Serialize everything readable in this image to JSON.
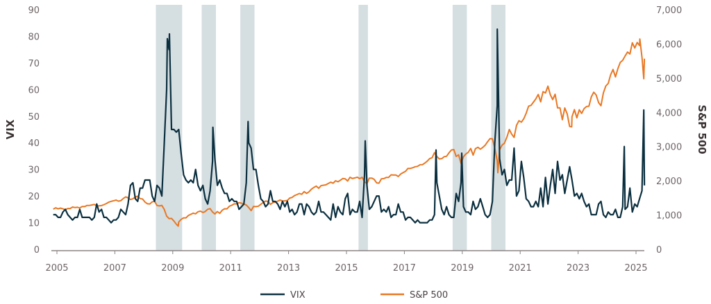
{
  "chart_data": {
    "type": "line",
    "title": "",
    "xlabel": "",
    "ylabel_left": "VIX",
    "ylabel_right": "S&P 500",
    "ylim_left": [
      0,
      90
    ],
    "ylim_right": [
      0,
      7000
    ],
    "yticks_left": [
      "0",
      "10",
      "20",
      "30",
      "40",
      "50",
      "60",
      "70",
      "80",
      "90"
    ],
    "yticks_right": [
      "0",
      "1,000",
      "2,000",
      "3,000",
      "4,000",
      "5,000",
      "6,000",
      "7,000"
    ],
    "xticks": [
      "2005",
      "2007",
      "2009",
      "2011",
      "2013",
      "2015",
      "2017",
      "2019",
      "2021",
      "2023",
      "2025"
    ],
    "grid": false,
    "legend_placement": "bottom",
    "colors": {
      "vix": "#0b2f3f",
      "sp500": "#e87722",
      "shading": "#d5dee1"
    },
    "shaded_periods": [
      [
        "2008-06",
        "2009-04"
      ],
      [
        "2010-01",
        "2010-06"
      ],
      [
        "2011-05",
        "2011-10"
      ],
      [
        "2015-06",
        "2015-09"
      ],
      [
        "2018-09",
        "2019-02"
      ],
      [
        "2020-01",
        "2020-06"
      ]
    ],
    "series": [
      {
        "name": "VIX",
        "axis": "left",
        "start": "2004-11",
        "monthly": [
          13,
          13,
          12,
          12,
          14,
          15,
          13,
          12,
          11,
          12,
          12,
          15,
          12,
          12,
          12,
          12,
          11,
          12,
          17,
          14,
          15,
          12,
          12,
          11,
          10,
          11,
          11,
          12,
          15,
          14,
          13,
          17,
          24,
          25,
          19,
          18,
          23,
          23,
          26,
          26,
          26,
          20,
          18,
          24,
          23,
          20,
          40,
          60,
          75,
          45,
          45,
          44,
          45,
          36,
          28,
          26,
          25,
          26,
          25,
          30,
          24,
          22,
          24,
          19,
          17,
          22,
          33,
          34,
          24,
          26,
          23,
          21,
          21,
          18,
          19,
          18,
          18,
          15,
          16,
          17,
          25,
          40,
          38,
          30,
          30,
          24,
          19,
          18,
          16,
          17,
          22,
          18,
          18,
          17,
          15,
          18,
          16,
          18,
          14,
          15,
          13,
          14,
          17,
          17,
          13,
          17,
          16,
          14,
          13,
          14,
          18,
          14,
          14,
          13,
          12,
          11,
          17,
          12,
          16,
          14,
          13,
          19,
          21,
          13,
          15,
          14,
          14,
          18,
          12,
          28,
          24,
          15,
          16,
          18,
          20,
          20,
          14,
          15,
          14,
          16,
          12,
          13,
          13,
          17,
          14,
          14,
          11,
          12,
          12,
          11,
          10,
          11,
          10,
          10,
          10,
          10,
          11,
          11,
          13,
          25,
          20,
          15,
          13,
          16,
          13,
          12,
          12,
          21,
          18,
          25,
          16,
          14,
          14,
          13,
          18,
          15,
          16,
          19,
          16,
          13,
          12,
          13,
          18,
          40,
          54,
          34,
          28,
          30,
          24,
          26,
          26,
          38,
          20,
          22,
          33,
          27,
          19,
          18,
          16,
          16,
          18,
          16,
          23,
          16,
          27,
          17,
          24,
          30,
          21,
          33,
          26,
          28,
          21,
          26,
          31,
          26,
          20,
          21,
          19,
          21,
          18,
          16,
          17,
          13,
          13,
          13,
          17,
          18,
          13,
          12,
          14,
          13,
          13,
          15,
          12,
          12,
          16,
          15,
          16,
          23,
          14,
          17,
          16,
          19,
          22,
          24
        ],
        "peaks": [
          [
            "2008-10-24",
            79.1
          ],
          [
            "2008-11-20",
            80.9
          ],
          [
            "2010-05-20",
            45.8
          ],
          [
            "2011-08-08",
            48.0
          ],
          [
            "2015-08-24",
            40.7
          ],
          [
            "2018-02-05",
            37.3
          ],
          [
            "2018-12-24",
            36.1
          ],
          [
            "2020-03-16",
            82.7
          ],
          [
            "2024-08-05",
            38.6
          ],
          [
            "2025-04-08",
            52.3
          ]
        ]
      },
      {
        "name": "S&P 500",
        "axis": "right",
        "start": "2004-11",
        "monthly": [
          1174,
          1212,
          1181,
          1204,
          1181,
          1157,
          1192,
          1191,
          1234,
          1220,
          1229,
          1207,
          1249,
          1248,
          1280,
          1281,
          1295,
          1311,
          1270,
          1270,
          1277,
          1304,
          1336,
          1378,
          1401,
          1418,
          1438,
          1407,
          1421,
          1482,
          1531,
          1503,
          1455,
          1474,
          1527,
          1549,
          1481,
          1468,
          1379,
          1331,
          1323,
          1386,
          1400,
          1280,
          1267,
          1283,
          1166,
          969,
          896,
          903,
          826,
          735,
          798,
          873,
          919,
          919,
          987,
          1021,
          1057,
          1036,
          1096,
          1115,
          1074,
          1104,
          1169,
          1187,
          1089,
          1031,
          1102,
          1049,
          1141,
          1183,
          1181,
          1258,
          1286,
          1327,
          1326,
          1364,
          1345,
          1321,
          1292,
          1219,
          1131,
          1253,
          1247,
          1258,
          1312,
          1366,
          1408,
          1398,
          1310,
          1362,
          1379,
          1407,
          1441,
          1412,
          1416,
          1426,
          1498,
          1515,
          1569,
          1598,
          1631,
          1606,
          1686,
          1633,
          1682,
          1757,
          1806,
          1848,
          1783,
          1859,
          1872,
          1884,
          1924,
          1960,
          1931,
          2003,
          1972,
          2018,
          2068,
          2059,
          1995,
          2105,
          2068,
          2086,
          2107,
          2063,
          2104,
          1972,
          1920,
          2079,
          2080,
          2044,
          1940,
          1932,
          2060,
          2065,
          2097,
          2099,
          2174,
          2171,
          2168,
          2126,
          2199,
          2239,
          2279,
          2364,
          2363,
          2384,
          2412,
          2423,
          2470,
          2472,
          2519,
          2575,
          2648,
          2674,
          2824,
          2714,
          2641,
          2648,
          2705,
          2718,
          2816,
          2902,
          2914,
          2712,
          2760,
          2507,
          2704,
          2784,
          2834,
          2946,
          2752,
          2942,
          2980,
          2926,
          2977,
          3038,
          3141,
          3231,
          3226,
          2954,
          2585,
          2912,
          3044,
          3100,
          3271,
          3500,
          3363,
          3270,
          3622,
          3756,
          3714,
          3811,
          3973,
          4181,
          4204,
          4298,
          4395,
          4523,
          4308,
          4605,
          4567,
          4766,
          4516,
          4374,
          4530,
          4132,
          4132,
          3785,
          4130,
          3955,
          3586,
          3872,
          4080,
          3840,
          4077,
          3970,
          4109,
          4169,
          4180,
          4450,
          4589,
          4508,
          4288,
          4194,
          4568,
          4770,
          4846,
          5096,
          5254,
          5036,
          5278,
          5460,
          5522,
          5648,
          5762,
          5705,
          6032,
          5882,
          6041,
          5955,
          5612,
          5569
        ],
        "peaks": [
          [
            "2009-03-09",
            677
          ],
          [
            "2020-03-23",
            2237
          ],
          [
            "2022-10-12",
            3577
          ],
          [
            "2025-02-19",
            6144
          ],
          [
            "2025-04-08",
            4983
          ]
        ]
      }
    ]
  }
}
